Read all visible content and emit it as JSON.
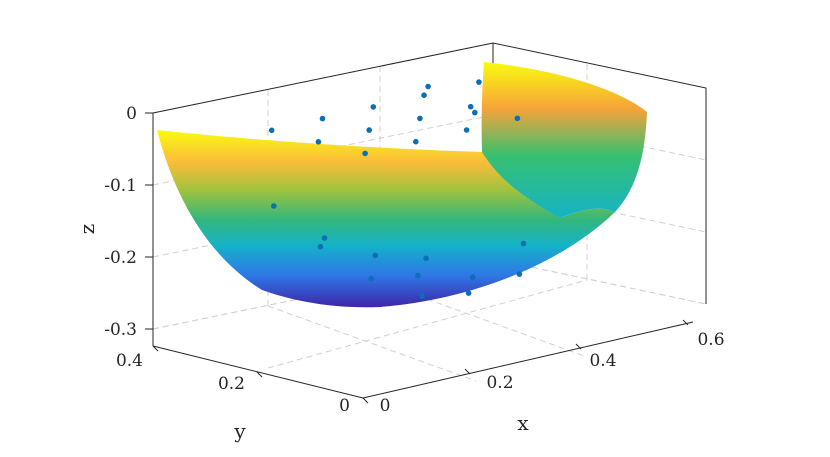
{
  "chart_data": {
    "type": "surface3d",
    "xlabel": "x",
    "ylabel": "y",
    "zlabel": "z",
    "x_ticks": [
      "0",
      "0.2",
      "0.4",
      "0.6"
    ],
    "y_ticks": [
      "0",
      "0.2",
      "0.4"
    ],
    "z_ticks": [
      "0",
      "-0.1",
      "-0.2",
      "-0.3"
    ],
    "xlim": [
      0,
      0.65
    ],
    "ylim": [
      0,
      0.45
    ],
    "zlim": [
      -0.32,
      0
    ],
    "grid": true,
    "colormap": "parula",
    "surface": {
      "shape": "paraboloid bowl with a quarter section removed",
      "z_min": -0.27,
      "z_max": 0
    },
    "scatter_series": {
      "marker_color": "#0a6fb5",
      "points": [
        [
          0.05,
          0.05,
          0.0
        ],
        [
          0.15,
          0.05,
          0.0
        ],
        [
          0.25,
          0.05,
          0.0
        ],
        [
          0.35,
          0.05,
          0.0
        ],
        [
          0.05,
          0.15,
          0.0
        ],
        [
          0.15,
          0.15,
          0.0
        ],
        [
          0.25,
          0.15,
          0.0
        ],
        [
          0.35,
          0.15,
          0.0
        ],
        [
          0.05,
          0.25,
          0.0
        ],
        [
          0.15,
          0.25,
          0.0
        ],
        [
          0.25,
          0.25,
          0.0
        ],
        [
          0.35,
          0.25,
          0.0
        ],
        [
          0.45,
          0.35,
          -0.02
        ],
        [
          0.55,
          0.35,
          -0.03
        ],
        [
          0.45,
          0.25,
          -0.04
        ],
        [
          0.1,
          0.3,
          -0.12
        ],
        [
          0.2,
          0.3,
          -0.18
        ],
        [
          0.3,
          0.3,
          -0.22
        ],
        [
          0.4,
          0.3,
          -0.24
        ],
        [
          0.1,
          0.2,
          -0.16
        ],
        [
          0.2,
          0.2,
          -0.22
        ],
        [
          0.3,
          0.2,
          -0.26
        ],
        [
          0.4,
          0.2,
          -0.25
        ],
        [
          0.5,
          0.2,
          -0.22
        ],
        [
          0.2,
          0.1,
          -0.2
        ],
        [
          0.3,
          0.1,
          -0.24
        ],
        [
          0.4,
          0.1,
          -0.23
        ]
      ]
    }
  }
}
